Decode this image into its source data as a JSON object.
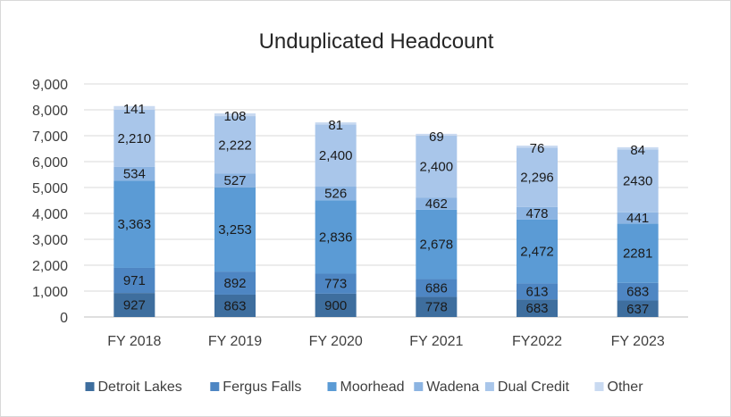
{
  "chart_data": {
    "type": "bar",
    "stacked": true,
    "title": "Unduplicated Headcount",
    "categories": [
      "FY 2018",
      "FY 2019",
      "FY 2020",
      "FY 2021",
      "FY2022",
      "FY 2023"
    ],
    "series": [
      {
        "name": "Detroit Lakes",
        "color": "#3e6e9e",
        "values": [
          927,
          863,
          900,
          778,
          683,
          637
        ],
        "labels": [
          "927",
          "863",
          "900",
          "778",
          "683",
          "637"
        ]
      },
      {
        "name": "Fergus Falls",
        "color": "#4e86c3",
        "values": [
          971,
          892,
          773,
          686,
          613,
          683
        ],
        "labels": [
          "971",
          "892",
          "773",
          "686",
          "613",
          "683"
        ]
      },
      {
        "name": "Moorhead",
        "color": "#5b9bd5",
        "values": [
          3363,
          3253,
          2836,
          2678,
          2472,
          2281
        ],
        "labels": [
          "3,363",
          "3,253",
          "2,836",
          "2,678",
          "2,472",
          "2281"
        ]
      },
      {
        "name": "Wadena",
        "color": "#8cb4e2",
        "values": [
          534,
          527,
          526,
          462,
          478,
          441
        ],
        "labels": [
          "534",
          "527",
          "526",
          "462",
          "478",
          "441"
        ]
      },
      {
        "name": "Dual Credit",
        "color": "#a9c6ea",
        "values": [
          2210,
          2222,
          2400,
          2400,
          2296,
          2430
        ],
        "labels": [
          "2,210",
          "2,222",
          "2,400",
          "2,400",
          "2,296",
          "2430"
        ]
      },
      {
        "name": "Other",
        "color": "#c9daf1",
        "values": [
          141,
          108,
          81,
          69,
          76,
          84
        ],
        "labels": [
          "141",
          "108",
          "81",
          "69",
          "76",
          "84"
        ]
      }
    ],
    "ylim": [
      0,
      9000
    ],
    "yticks": [
      0,
      1000,
      2000,
      3000,
      4000,
      5000,
      6000,
      7000,
      8000,
      9000
    ],
    "ytick_labels": [
      "0",
      "1,000",
      "2,000",
      "3,000",
      "4,000",
      "5,000",
      "6,000",
      "7,000",
      "8,000",
      "9,000"
    ],
    "grid": true,
    "legend_position": "bottom"
  }
}
